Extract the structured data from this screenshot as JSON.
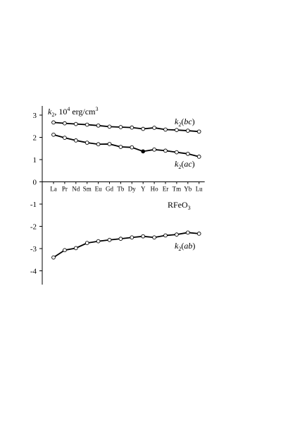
{
  "chart_data": {
    "type": "line",
    "ylabel_parts": {
      "k": "k",
      "sub": "2",
      "mid": ", 10",
      "exp": "4",
      "unit": " erg/cm",
      "unit_exp": "3"
    },
    "categories": [
      "La",
      "Pr",
      "Nd",
      "Sm",
      "Eu",
      "Gd",
      "Tb",
      "Dy",
      "Y",
      "Ho",
      "Er",
      "Tm",
      "Yb",
      "Lu"
    ],
    "ylim": [
      -4.5,
      3.5
    ],
    "yticks": [
      3,
      2,
      1,
      0,
      -1,
      -2,
      -3,
      -4
    ],
    "ytick_labels": [
      "3",
      "2",
      "1",
      "0",
      "-1",
      "-2",
      "-3",
      "-4"
    ],
    "grid": false,
    "series": [
      {
        "id": "bc",
        "label_k": "k",
        "label_sub": "2",
        "label_paren": "(",
        "label_axes": "bc",
        "label_close": ")",
        "values": [
          2.67,
          2.63,
          2.6,
          2.57,
          2.53,
          2.48,
          2.46,
          2.44,
          2.38,
          2.43,
          2.35,
          2.33,
          2.3,
          2.26
        ],
        "filled_points": []
      },
      {
        "id": "ac",
        "label_k": "k",
        "label_sub": "2",
        "label_paren": "(",
        "label_axes": "ac",
        "label_close": ")",
        "values": [
          2.12,
          1.98,
          1.86,
          1.76,
          1.69,
          1.7,
          1.57,
          1.55,
          1.37,
          1.45,
          1.4,
          1.33,
          1.26,
          1.13
        ],
        "filled_points": [
          8
        ]
      },
      {
        "id": "ab",
        "label_k": "k",
        "label_sub": "2",
        "label_paren": "(",
        "label_axes": "ab",
        "label_close": ")",
        "values": [
          -3.4,
          -3.07,
          -2.98,
          -2.75,
          -2.67,
          -2.61,
          -2.56,
          -2.5,
          -2.45,
          -2.5,
          -2.41,
          -2.37,
          -2.28,
          -2.33
        ],
        "filled_points": []
      }
    ],
    "annotation_parts": {
      "pre": "RFeO",
      "sub": "3"
    }
  }
}
